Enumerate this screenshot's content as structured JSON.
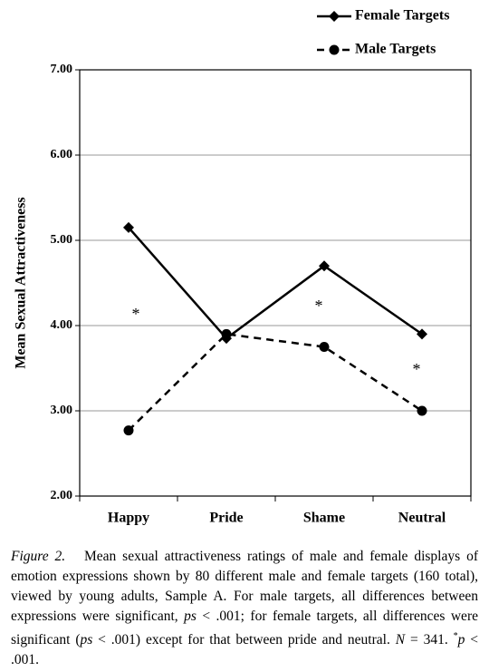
{
  "chart_data": {
    "type": "line",
    "y_label": "Mean Sexual Attractiveness",
    "categories": [
      "Happy",
      "Pride",
      "Shame",
      "Neutral"
    ],
    "series": [
      {
        "name": "Female Targets",
        "color": "#000000",
        "marker": "diamond",
        "dashed": false,
        "values": [
          5.15,
          3.85,
          4.7,
          3.9
        ]
      },
      {
        "name": "Male Targets",
        "color": "#000000",
        "marker": "circle",
        "dashed": true,
        "values": [
          2.77,
          3.9,
          3.75,
          3.0
        ]
      }
    ],
    "ylim": [
      2,
      7
    ],
    "yticks": [
      {
        "value": 2,
        "label": "2.00"
      },
      {
        "value": 3,
        "label": "3.00"
      },
      {
        "value": 4,
        "label": "4.00"
      },
      {
        "value": 5,
        "label": "5.00"
      },
      {
        "value": 6,
        "label": "6.00"
      },
      {
        "value": 7,
        "label": "7.00"
      }
    ],
    "grid": true,
    "annotations": [
      "*",
      "*",
      "*"
    ]
  },
  "caption": [
    {
      "text": "Figure 2.",
      "italic": true
    },
    {
      "text": "   Mean sexual attractiveness ratings of male and female displays of emotion expressions shown by 80 different male and female targets (160 total), viewed by young adults, Sample A. For male targets, all differences between expressions were significant, "
    },
    {
      "text": "ps",
      "italic": true
    },
    {
      "text": " < .001; for female targets, all differences were significant ("
    },
    {
      "text": "ps",
      "italic": true
    },
    {
      "text": " < .001) except for that between pride and neutral. "
    },
    {
      "text": "N",
      "italic": true
    },
    {
      "text": " = 341. "
    },
    {
      "text": "*",
      "sup": true
    },
    {
      "text": "p",
      "italic": true
    },
    {
      "text": " < .001."
    }
  ]
}
